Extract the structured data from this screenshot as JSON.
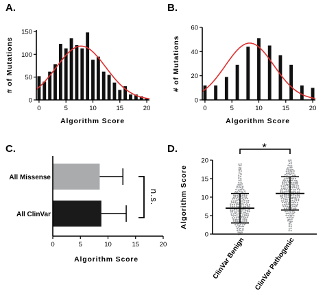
{
  "chart_data": [
    {
      "panel": "A.",
      "type": "bar",
      "xlabel": "Algorithm Score",
      "ylabel": "# of Mutations",
      "x": [
        0,
        1,
        2,
        3,
        4,
        5,
        6,
        7,
        8,
        9,
        10,
        11,
        12,
        13,
        14,
        15,
        16,
        17,
        18,
        19,
        20
      ],
      "values": [
        52,
        40,
        62,
        78,
        123,
        113,
        135,
        120,
        113,
        148,
        88,
        95,
        62,
        55,
        38,
        22,
        30,
        12,
        12,
        8,
        3
      ],
      "fit_curve": {
        "type": "gaussian",
        "peak": 118,
        "mean": 8.3,
        "sd": 4.6,
        "color": "#e03030"
      },
      "xlim": [
        0,
        21
      ],
      "ylim": [
        0,
        150
      ],
      "xticks": [
        0,
        5,
        10,
        15,
        20
      ],
      "yticks": [
        0,
        50,
        100,
        150
      ]
    },
    {
      "panel": "B.",
      "type": "bar",
      "xlabel": "Algorithm Score",
      "ylabel": "# of Mutations",
      "x": [
        0,
        1,
        2,
        3,
        4,
        5,
        6,
        7,
        8,
        9,
        10,
        11,
        12,
        13,
        14,
        15,
        16,
        17,
        18,
        19,
        20
      ],
      "values": [
        12,
        0,
        12,
        0,
        19,
        0,
        29,
        0,
        44,
        0,
        51,
        0,
        45,
        0,
        37,
        0,
        29,
        0,
        12,
        0,
        10
      ],
      "fit_curve": {
        "type": "gaussian",
        "peak": 47,
        "mean": 8.8,
        "sd": 4.5,
        "color": "#e03030"
      },
      "xlim": [
        0,
        21
      ],
      "ylim": [
        0,
        60
      ],
      "xticks": [
        0,
        5,
        10,
        15,
        20
      ],
      "yticks": [
        0,
        20,
        40,
        60
      ]
    },
    {
      "panel": "C.",
      "type": "bar",
      "orientation": "horizontal",
      "categories": [
        "All Missense",
        "All ClinVar"
      ],
      "values": [
        8.5,
        8.8
      ],
      "error": [
        4.2,
        4.5
      ],
      "colors": [
        "#a9abad",
        "#1a1a1a"
      ],
      "xlabel": "Algorithm Score",
      "xlim": [
        0,
        20
      ],
      "xticks": [
        0,
        5,
        10,
        15,
        20
      ],
      "annotation": "n.s."
    },
    {
      "panel": "D.",
      "type": "scatter",
      "categories": [
        "ClinVar Benign",
        "ClinVar Pathogenic"
      ],
      "mean": [
        7.0,
        11.0
      ],
      "sd": [
        4.0,
        4.5
      ],
      "range": [
        [
          0,
          19
        ],
        [
          1,
          20
        ]
      ],
      "point_color": "#9a9c9e",
      "ylabel": "Algorithm Score",
      "ylim": [
        0,
        20
      ],
      "yticks": [
        0,
        5,
        10,
        15,
        20
      ],
      "annotation": "*"
    }
  ]
}
